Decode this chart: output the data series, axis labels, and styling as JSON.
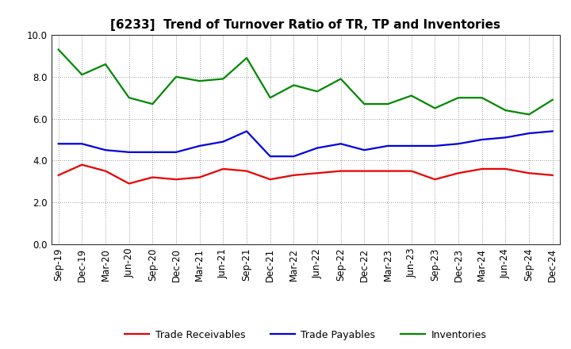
{
  "title": "[6233]  Trend of Turnover Ratio of TR, TP and Inventories",
  "x_labels": [
    "Sep-19",
    "Dec-19",
    "Mar-20",
    "Jun-20",
    "Sep-20",
    "Dec-20",
    "Mar-21",
    "Jun-21",
    "Sep-21",
    "Dec-21",
    "Mar-22",
    "Jun-22",
    "Sep-22",
    "Dec-22",
    "Mar-23",
    "Jun-23",
    "Sep-23",
    "Dec-23",
    "Mar-24",
    "Jun-24",
    "Sep-24",
    "Dec-24"
  ],
  "trade_receivables": [
    3.3,
    3.8,
    3.5,
    2.9,
    3.2,
    3.1,
    3.2,
    3.6,
    3.5,
    3.1,
    3.3,
    3.4,
    3.5,
    3.5,
    3.5,
    3.5,
    3.1,
    3.4,
    3.6,
    3.6,
    3.4,
    3.3
  ],
  "trade_payables": [
    4.8,
    4.8,
    4.5,
    4.4,
    4.4,
    4.4,
    4.7,
    4.9,
    5.4,
    4.2,
    4.2,
    4.6,
    4.8,
    4.5,
    4.7,
    4.7,
    4.7,
    4.8,
    5.0,
    5.1,
    5.3,
    5.4
  ],
  "inventories": [
    9.3,
    8.1,
    8.6,
    7.0,
    6.7,
    8.0,
    7.8,
    7.9,
    8.9,
    7.0,
    7.6,
    7.3,
    7.9,
    6.7,
    6.7,
    7.1,
    6.5,
    7.0,
    7.0,
    6.4,
    6.2,
    6.9
  ],
  "tr_color": "#e80000",
  "tp_color": "#0000dd",
  "inv_color": "#008800",
  "ylim": [
    0.0,
    10.0
  ],
  "yticks": [
    0.0,
    2.0,
    4.0,
    6.0,
    8.0,
    10.0
  ],
  "legend_labels": [
    "Trade Receivables",
    "Trade Payables",
    "Inventories"
  ],
  "background_color": "#ffffff",
  "grid_color": "#999999",
  "line_width": 1.6,
  "title_fontsize": 11,
  "tick_fontsize": 8.5,
  "legend_fontsize": 9
}
